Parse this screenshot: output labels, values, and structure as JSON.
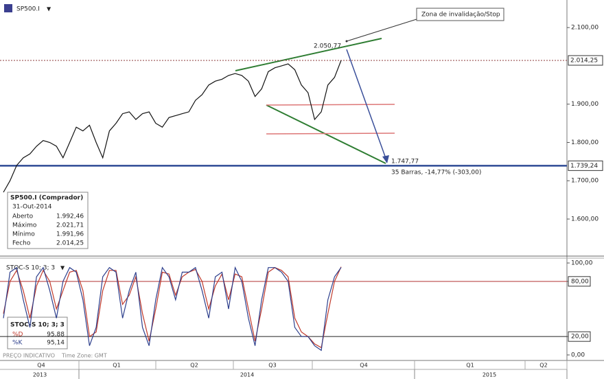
{
  "header": {
    "symbol": "SP500.I"
  },
  "chart_data": [
    {
      "type": "line",
      "name": "SP500.I",
      "color": "#111111",
      "values": [
        1670,
        1700,
        1740,
        1760,
        1770,
        1790,
        1805,
        1800,
        1790,
        1760,
        1800,
        1840,
        1830,
        1845,
        1800,
        1760,
        1830,
        1850,
        1875,
        1880,
        1860,
        1875,
        1880,
        1850,
        1840,
        1865,
        1870,
        1875,
        1880,
        1910,
        1925,
        1950,
        1960,
        1965,
        1975,
        1980,
        1975,
        1960,
        1920,
        1940,
        1985,
        1995,
        2000,
        2005,
        1990,
        1950,
        1930,
        1860,
        1880,
        1950,
        1970,
        2014.25
      ],
      "ylim": [
        1505,
        2172
      ],
      "yticks": [
        {
          "value": 2100,
          "label": "2.100,00"
        },
        {
          "value": 1900,
          "label": "1.900,00"
        },
        {
          "value": 1800,
          "label": "1.800,00"
        },
        {
          "value": 1700,
          "label": "1.700,00"
        },
        {
          "value": 1600,
          "label": "1.600,00"
        }
      ],
      "hlines": [
        {
          "value": 2014.25,
          "label": "2.014,25",
          "color": "#8b3a3a"
        },
        {
          "value": 1739.24,
          "label": "1.739,24",
          "color": "#2e4a94"
        }
      ],
      "annotations": [
        "2.050,77",
        "1.747,77",
        "35 Barras, -14,77% (-303,00)",
        "Zona de invalidação/Stop"
      ]
    },
    {
      "type": "line",
      "name": "STOC-S 10; 3; 3",
      "series": [
        {
          "name": "%D",
          "color": "#c0392b",
          "last_label": "95,88",
          "values": [
            45,
            80,
            92,
            70,
            40,
            75,
            92,
            80,
            50,
            70,
            90,
            92,
            70,
            20,
            25,
            70,
            92,
            92,
            55,
            65,
            85,
            45,
            15,
            50,
            90,
            88,
            65,
            85,
            90,
            93,
            80,
            50,
            75,
            88,
            60,
            88,
            85,
            50,
            15,
            50,
            90,
            95,
            92,
            85,
            40,
            25,
            20,
            12,
            8,
            45,
            80,
            95.88
          ]
        },
        {
          "name": "%K",
          "color": "#2c3e8c",
          "last_label": "95,14",
          "values": [
            40,
            90,
            95,
            60,
            30,
            85,
            95,
            70,
            40,
            80,
            95,
            90,
            60,
            10,
            30,
            85,
            95,
            90,
            40,
            70,
            90,
            30,
            10,
            60,
            95,
            85,
            60,
            90,
            90,
            95,
            70,
            40,
            85,
            90,
            50,
            95,
            80,
            40,
            10,
            60,
            95,
            95,
            90,
            80,
            30,
            20,
            20,
            10,
            5,
            60,
            85,
            95.14
          ]
        }
      ],
      "ylim": [
        -6,
        106
      ],
      "yticks": [
        {
          "value": 100,
          "label": "100,00"
        },
        {
          "value": 80,
          "label": "80,00"
        },
        {
          "value": 20,
          "label": "20,00"
        },
        {
          "value": 0,
          "label": "0,00"
        }
      ],
      "hlines": [
        {
          "value": 80,
          "color": "#b03030"
        },
        {
          "value": 20,
          "color": "#222222"
        }
      ]
    }
  ],
  "info_box": {
    "title": "SP500.I (Comprador)",
    "date": "31-Out-2014",
    "rows": [
      [
        "Aberto",
        "1.992,46"
      ],
      [
        "Máximo",
        "2.021,71"
      ],
      [
        "Mínimo",
        "1.991,96"
      ],
      [
        "Fecho",
        "2.014,25"
      ]
    ]
  },
  "footer": {
    "note": "PREÇO INDICATIVO",
    "timezone": "Time Zone: GMT"
  },
  "x_axis": {
    "quarters": [
      "Q4",
      "Q1",
      "Q2",
      "Q3",
      "Q4",
      "Q1",
      "Q2"
    ],
    "years": [
      "2013",
      "2014",
      "2015"
    ]
  }
}
